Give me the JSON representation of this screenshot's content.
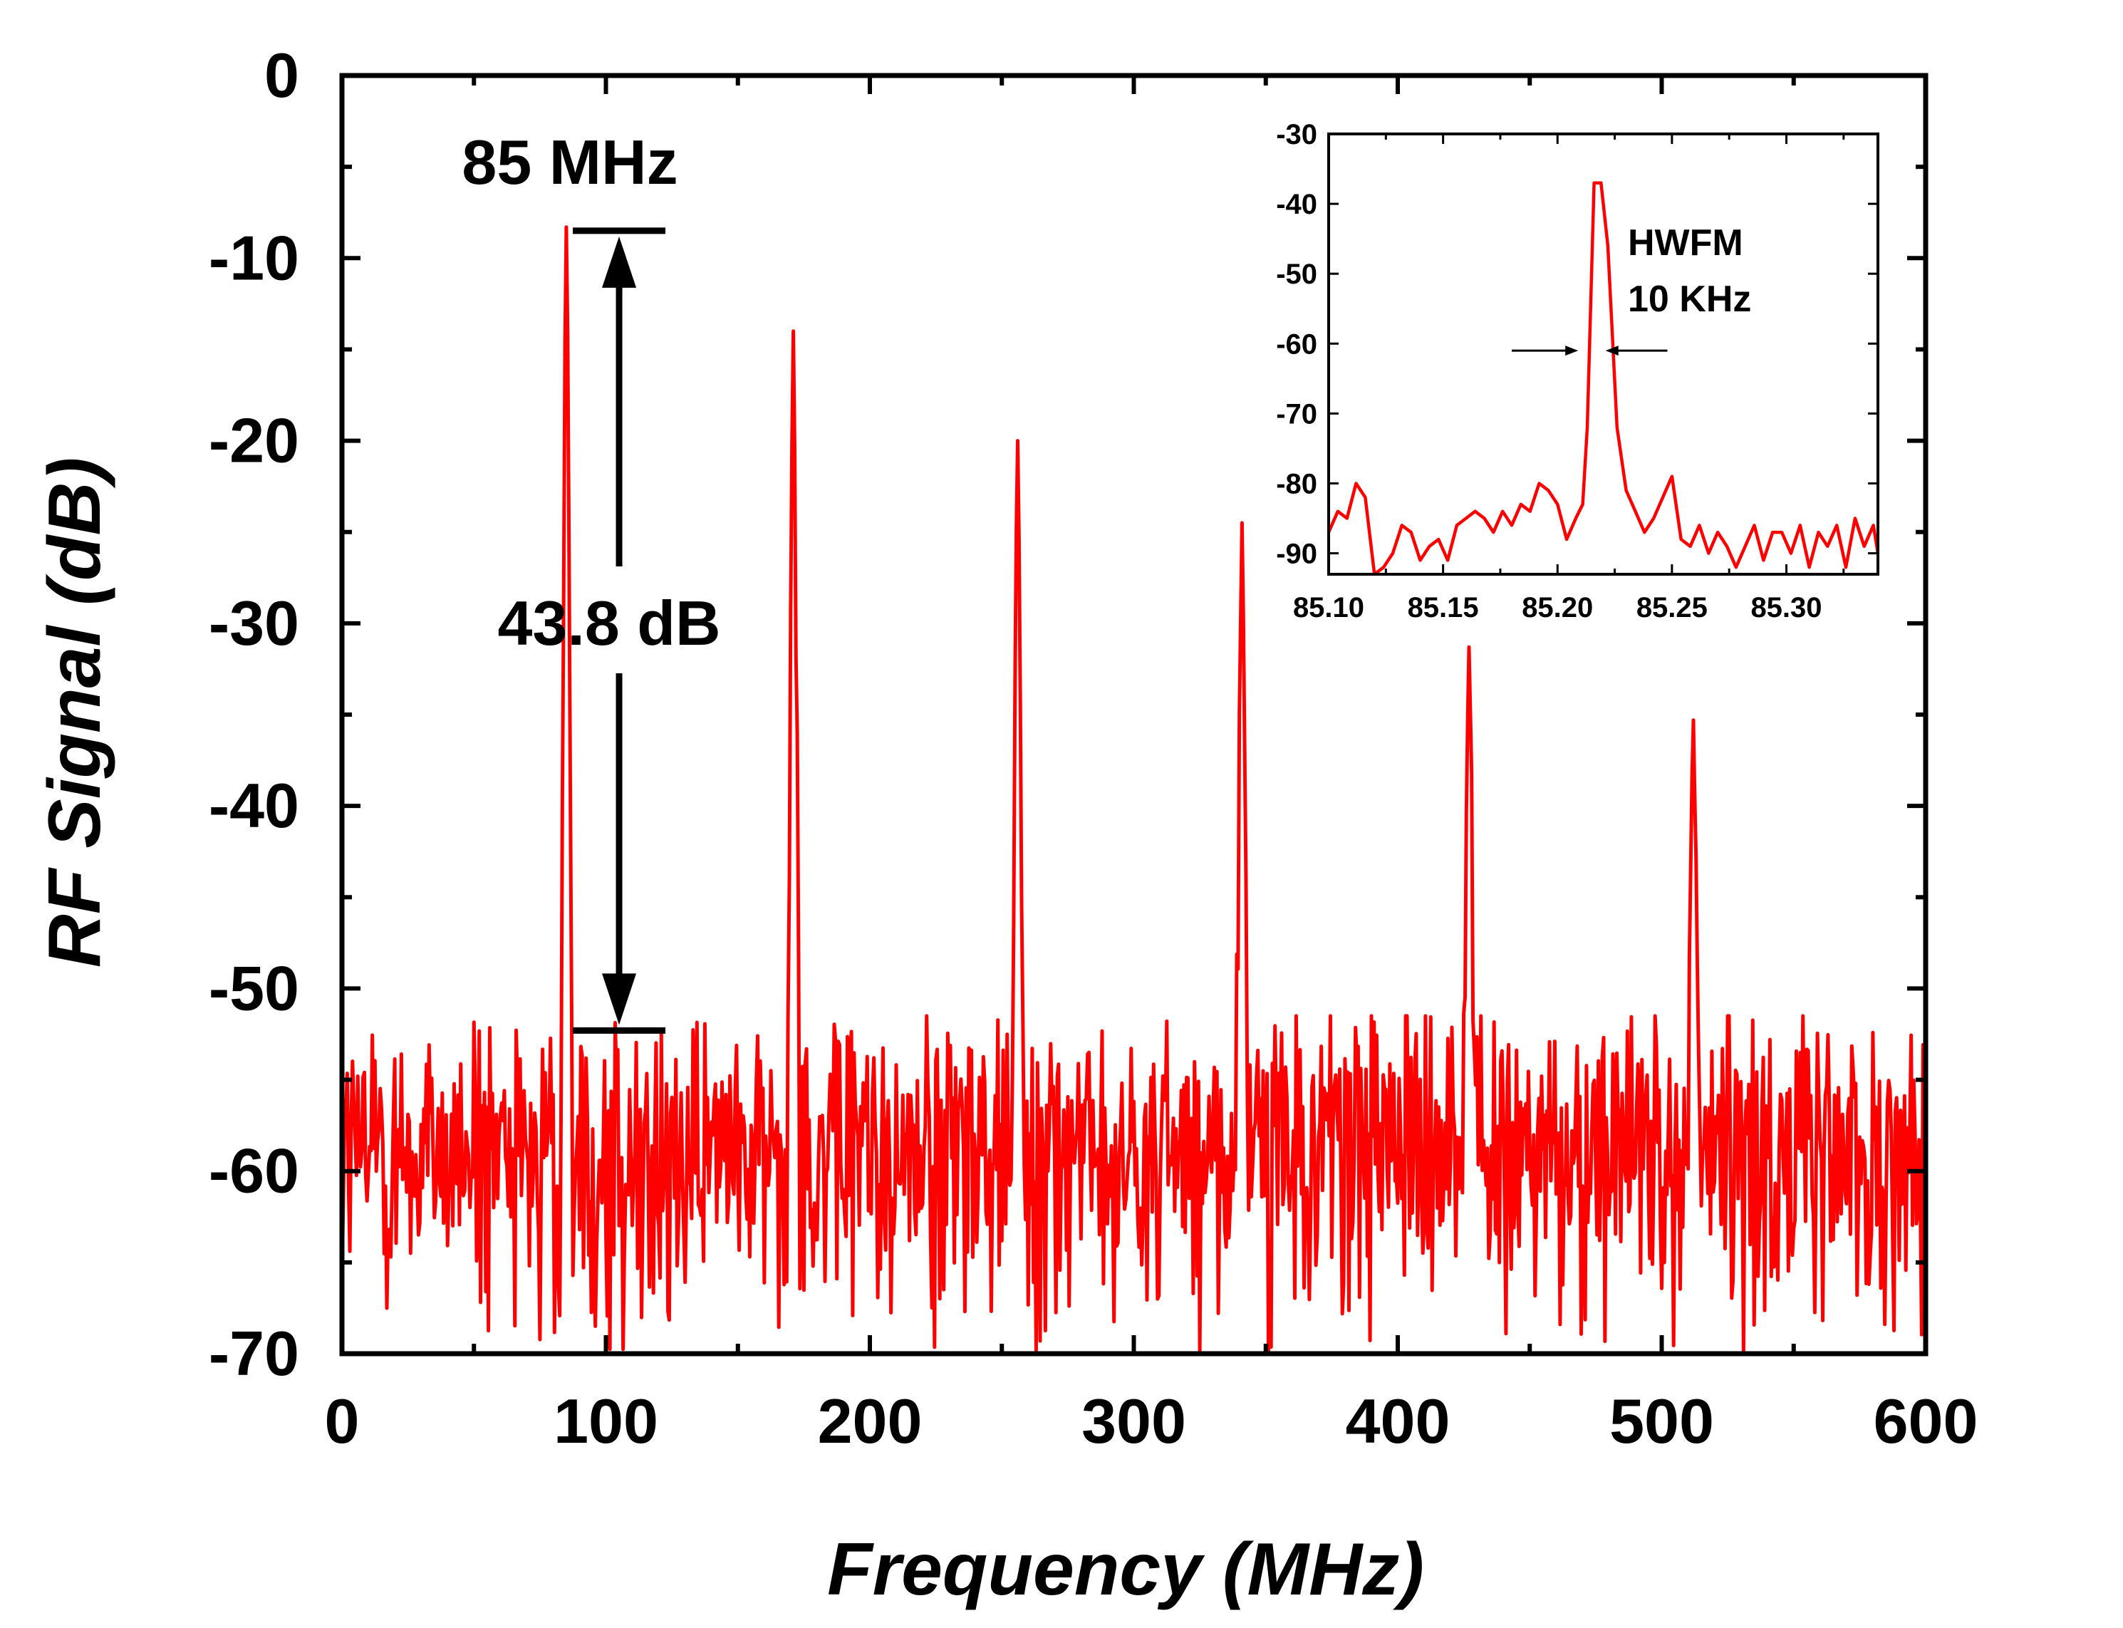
{
  "chart_data": [
    {
      "type": "line",
      "xlabel": "Frequency (MHz)",
      "ylabel": "RF Signal (dB)",
      "xlim": [
        0,
        600
      ],
      "ylim": [
        -70,
        0
      ],
      "xticks": [
        "0",
        "100",
        "200",
        "300",
        "400",
        "500",
        "600"
      ],
      "yticks": [
        "0",
        "-10",
        "-20",
        "-30",
        "-40",
        "-50",
        "-60",
        "-70"
      ],
      "series": [
        {
          "color": "#ff0000",
          "noise_floor_mean": -59,
          "noise_floor_range": [
            -70,
            -51.5
          ],
          "peaks": [
            {
              "x": 85,
              "y": -8.3
            },
            {
              "x": 171,
              "y": -14
            },
            {
              "x": 256,
              "y": -20
            },
            {
              "x": 341,
              "y": -24.5
            },
            {
              "x": 427,
              "y": -31.3
            },
            {
              "x": 512,
              "y": -35.3
            }
          ]
        }
      ],
      "annotations": {
        "peak_label": "85 MHz",
        "range_label": "43.8 dB",
        "arrow_top": -8.5,
        "arrow_bottom": -52.3
      },
      "grid": false
    },
    {
      "type": "line",
      "role": "inset",
      "xlim": [
        85.1,
        85.34
      ],
      "ylim": [
        -93,
        -30
      ],
      "xticks": [
        "85.10",
        "85.15",
        "85.20",
        "85.25",
        "85.30"
      ],
      "yticks": [
        "-30",
        "-40",
        "-50",
        "-60",
        "-70",
        "-80",
        "-90"
      ],
      "series": [
        {
          "color": "#ff0000",
          "x": [
            85.1,
            85.104,
            85.108,
            85.112,
            85.116,
            85.12,
            85.124,
            85.128,
            85.132,
            85.136,
            85.14,
            85.144,
            85.148,
            85.152,
            85.156,
            85.16,
            85.164,
            85.168,
            85.172,
            85.176,
            85.18,
            85.184,
            85.188,
            85.192,
            85.196,
            85.2,
            85.204,
            85.208,
            85.211,
            85.213,
            85.216,
            85.219,
            85.222,
            85.226,
            85.23,
            85.234,
            85.238,
            85.242,
            85.246,
            85.25,
            85.254,
            85.258,
            85.262,
            85.266,
            85.27,
            85.274,
            85.278,
            85.282,
            85.286,
            85.29,
            85.294,
            85.298,
            85.302,
            85.306,
            85.31,
            85.314,
            85.318,
            85.322,
            85.326,
            85.33,
            85.334,
            85.338,
            85.34
          ],
          "y": [
            -87,
            -84,
            -85,
            -80,
            -82,
            -93,
            -92,
            -90,
            -86,
            -87,
            -91,
            -89,
            -88,
            -91,
            -86,
            -85,
            -84,
            -85,
            -87,
            -84,
            -86,
            -83,
            -84,
            -80,
            -81,
            -83,
            -88,
            -85,
            -83,
            -72,
            -37,
            -37,
            -46,
            -72,
            -81,
            -84,
            -87,
            -85,
            -82,
            -79,
            -88,
            -89,
            -86,
            -90,
            -87,
            -89,
            -92,
            -89,
            -86,
            -91,
            -87,
            -87,
            -90,
            -86,
            -92,
            -87,
            -89,
            -86,
            -92,
            -85,
            -89,
            -86,
            -90
          ]
        }
      ],
      "annotations": {
        "label_line1": "HWFM",
        "label_line2": "10 KHz"
      }
    }
  ]
}
